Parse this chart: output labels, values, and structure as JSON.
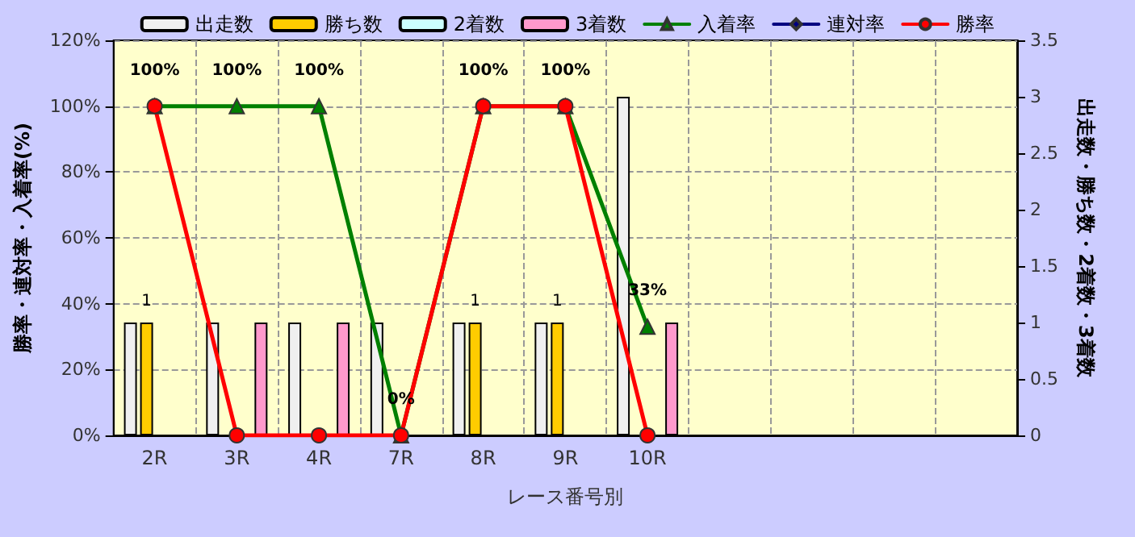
{
  "chart_data": {
    "type": "bar",
    "xlabel": "レース番号別",
    "ylabel": "勝率・連対率・入着率(%)",
    "y2label": "出走数・勝ち数・2着数・3着数",
    "categories": [
      "2R",
      "3R",
      "4R",
      "7R",
      "8R",
      "9R",
      "10R",
      null,
      null,
      null,
      null
    ],
    "series": [
      {
        "name": "出走数",
        "axis": "y2",
        "color": "#f0f0f0",
        "values": [
          1,
          1,
          1,
          1,
          1,
          1,
          3,
          null,
          null,
          null,
          null
        ]
      },
      {
        "name": "勝ち数",
        "axis": "y2",
        "color": "#ffcc00",
        "values": [
          1,
          0,
          0,
          0,
          1,
          1,
          0,
          null,
          null,
          null,
          null
        ],
        "value_labels": [
          "1",
          null,
          null,
          null,
          "1",
          "1",
          null,
          null,
          null,
          null,
          null
        ]
      },
      {
        "name": "2着数",
        "axis": "y2",
        "color": "#ccffff",
        "values": [
          0,
          0,
          0,
          0,
          0,
          0,
          0,
          null,
          null,
          null,
          null
        ]
      },
      {
        "name": "3着数",
        "axis": "y2",
        "color": "#ff99cc",
        "values": [
          0,
          1,
          1,
          0,
          0,
          0,
          1,
          null,
          null,
          null,
          null
        ]
      },
      {
        "name": "入着率",
        "type": "line",
        "marker": "triangle",
        "color": "#008000",
        "values": [
          100,
          100,
          100,
          0,
          100,
          100,
          33,
          null,
          null,
          null,
          null
        ],
        "value_labels": [
          "100%",
          "100%",
          "100%",
          "0%",
          "100%",
          "100%",
          "33%",
          null,
          null,
          null,
          null
        ]
      },
      {
        "name": "連対率",
        "type": "line",
        "marker": "diamond",
        "color": "#000080",
        "values": [
          null,
          null,
          null,
          null,
          null,
          null,
          null,
          null,
          null,
          null,
          null
        ]
      },
      {
        "name": "勝率",
        "type": "line",
        "marker": "circle",
        "color": "#ff0000",
        "values": [
          100,
          0,
          0,
          0,
          100,
          100,
          0,
          null,
          null,
          null,
          null
        ]
      }
    ],
    "ylim": [
      0,
      120
    ],
    "yticks": [
      {
        "value": 0,
        "label": "0%"
      },
      {
        "value": 20,
        "label": "20%"
      },
      {
        "value": 40,
        "label": "40%"
      },
      {
        "value": 60,
        "label": "60%"
      },
      {
        "value": 80,
        "label": "80%"
      },
      {
        "value": 100,
        "label": "100%"
      },
      {
        "value": 120,
        "label": "120%"
      }
    ],
    "y2lim": [
      0,
      3.5
    ],
    "y2ticks": [
      0,
      0.5,
      1,
      1.5,
      2,
      2.5,
      3,
      3.5
    ],
    "grid": true,
    "legend": "top",
    "line_style": "solid"
  }
}
